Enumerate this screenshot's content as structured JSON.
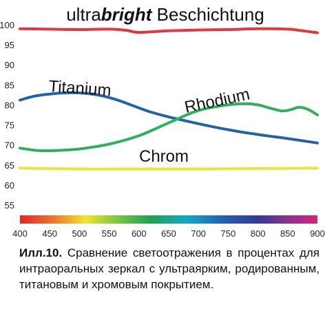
{
  "chart_data": {
    "type": "line",
    "title": {
      "prefix": "ultra",
      "emphasis": "bright",
      "suffix": " Beschichtung"
    },
    "xlim": [
      400,
      900
    ],
    "ylim": [
      50,
      100
    ],
    "x_ticks": [
      "400",
      "450",
      "500",
      "550",
      "600",
      "650",
      "700",
      "750",
      "800",
      "850",
      "900"
    ],
    "y_ticks": [
      "100",
      "95",
      "90",
      "85",
      "80",
      "75",
      "70",
      "65",
      "60",
      "55"
    ],
    "grid": false,
    "series": [
      {
        "key": "ultrabright",
        "color": "#e8343e",
        "points": [
          [
            400,
            99.0
          ],
          [
            450,
            98.9
          ],
          [
            500,
            98.8
          ],
          [
            550,
            98.9
          ],
          [
            580,
            98.6
          ],
          [
            600,
            98.1
          ],
          [
            650,
            98.5
          ],
          [
            700,
            98.7
          ],
          [
            750,
            98.8
          ],
          [
            800,
            99.0
          ],
          [
            850,
            98.9
          ],
          [
            870,
            98.6
          ],
          [
            900,
            98.0
          ]
        ]
      },
      {
        "key": "titanium",
        "name": "Titanium",
        "color": "#2462a8",
        "points": [
          [
            400,
            81.2
          ],
          [
            425,
            82.2
          ],
          [
            450,
            82.7
          ],
          [
            475,
            83.0
          ],
          [
            500,
            83.0
          ],
          [
            530,
            82.5
          ],
          [
            560,
            81.4
          ],
          [
            590,
            79.8
          ],
          [
            620,
            78.2
          ],
          [
            650,
            77.0
          ],
          [
            700,
            75.3
          ],
          [
            750,
            73.8
          ],
          [
            800,
            72.6
          ],
          [
            850,
            71.6
          ],
          [
            900,
            70.5
          ]
        ]
      },
      {
        "key": "rhodium",
        "name": "Rhodium",
        "color": "#2cb25a",
        "points": [
          [
            400,
            69.2
          ],
          [
            430,
            68.6
          ],
          [
            460,
            68.6
          ],
          [
            500,
            69.0
          ],
          [
            550,
            70.2
          ],
          [
            600,
            72.3
          ],
          [
            650,
            75.5
          ],
          [
            700,
            78.6
          ],
          [
            750,
            80.0
          ],
          [
            780,
            80.3
          ],
          [
            800,
            80.0
          ],
          [
            820,
            79.2
          ],
          [
            840,
            78.5
          ],
          [
            855,
            78.8
          ],
          [
            870,
            79.4
          ],
          [
            885,
            78.8
          ],
          [
            900,
            77.5
          ]
        ]
      },
      {
        "key": "chrom",
        "name": "Chrom",
        "color": "#e9e53a",
        "points": [
          [
            400,
            64.2
          ],
          [
            500,
            64.0
          ],
          [
            600,
            64.0
          ],
          [
            700,
            64.0
          ],
          [
            800,
            64.1
          ],
          [
            900,
            64.2
          ]
        ]
      }
    ]
  },
  "caption": {
    "label": "Илл.10.",
    "text": " Сравнение светоотражения в процентах для интраоральных зеркал с ультраярким, родированным, титановым и хромовым покрытием."
  }
}
